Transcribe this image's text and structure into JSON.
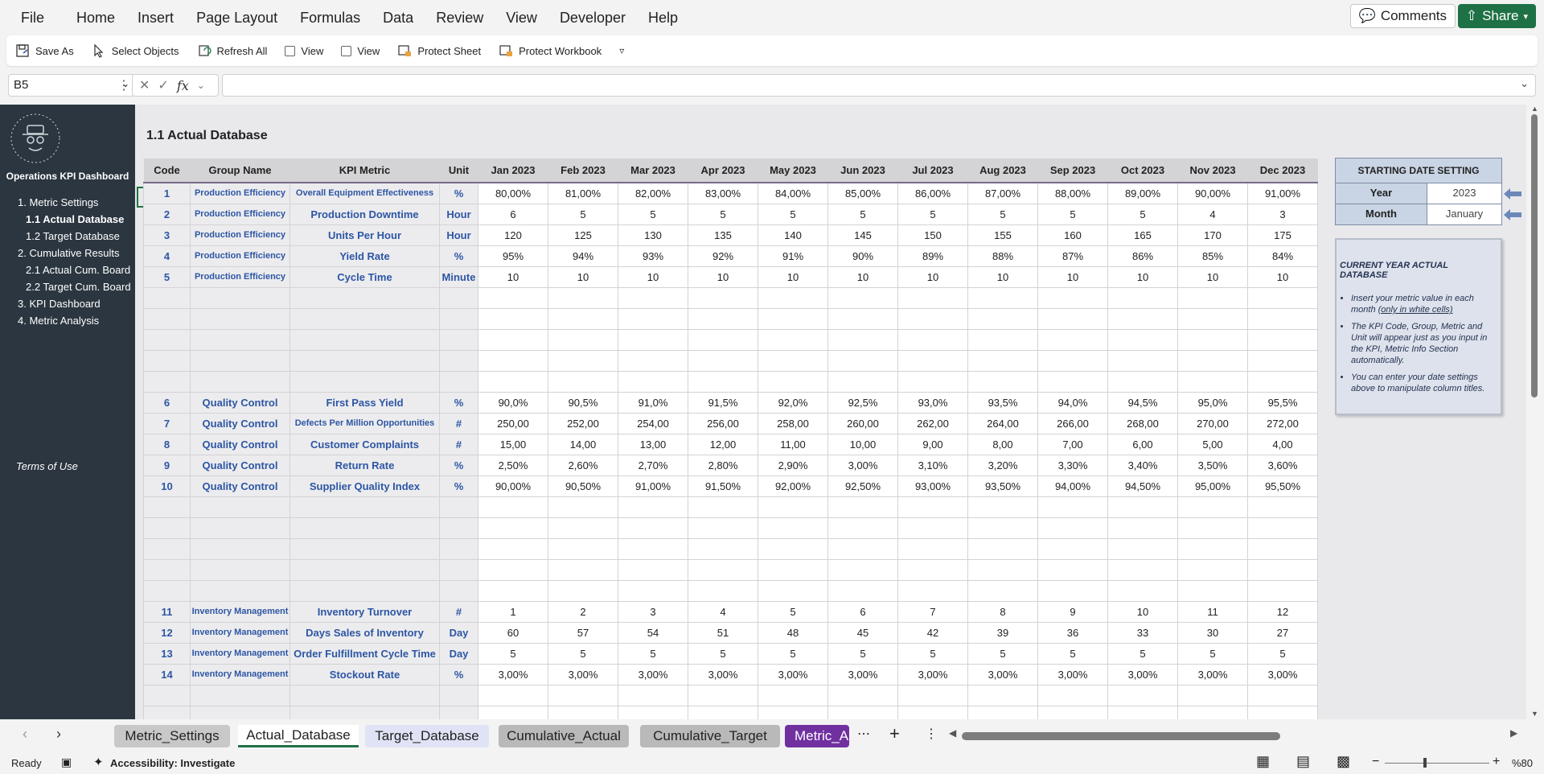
{
  "menu": [
    "File",
    "Home",
    "Insert",
    "Page Layout",
    "Formulas",
    "Data",
    "Review",
    "View",
    "Developer",
    "Help"
  ],
  "comments_label": "Comments",
  "share_label": "Share",
  "ribbon": {
    "save_as": "Save As",
    "select_objects": "Select Objects",
    "refresh_all": "Refresh All",
    "view1": "View",
    "view2": "View",
    "protect_sheet": "Protect Sheet",
    "protect_workbook": "Protect Workbook"
  },
  "formula_bar": {
    "cell_ref": "B5",
    "formula": ""
  },
  "sidebar": {
    "title": "Operations KPI Dashboard",
    "items": [
      {
        "label": "1. Metric Settings",
        "active": false,
        "indent": false
      },
      {
        "label": "1.1 Actual Database",
        "active": true,
        "indent": true
      },
      {
        "label": "1.2 Target Database",
        "active": false,
        "indent": true
      },
      {
        "label": "2. Cumulative Results",
        "active": false,
        "indent": false
      },
      {
        "label": "2.1 Actual Cum. Board",
        "active": false,
        "indent": true
      },
      {
        "label": "2.2 Target Cum. Board",
        "active": false,
        "indent": true
      },
      {
        "label": "3. KPI Dashboard",
        "active": false,
        "indent": false
      },
      {
        "label": "4. Metric Analysis",
        "active": false,
        "indent": false
      }
    ],
    "terms": "Terms of Use"
  },
  "sheet_title": "1.1 Actual Database",
  "columns": [
    "Code",
    "Group Name",
    "KPI Metric",
    "Unit",
    "Jan 2023",
    "Feb 2023",
    "Mar 2023",
    "Apr 2023",
    "May 2023",
    "Jun 2023",
    "Jul 2023",
    "Aug 2023",
    "Sep 2023",
    "Oct 2023",
    "Nov 2023",
    "Dec 2023"
  ],
  "blocks": [
    {
      "rows": [
        {
          "code": "1",
          "group": "Production Efficiency",
          "metric": "Overall Equipment Effectiveness",
          "unit": "%",
          "values": [
            "80,00%",
            "81,00%",
            "82,00%",
            "83,00%",
            "84,00%",
            "85,00%",
            "86,00%",
            "87,00%",
            "88,00%",
            "89,00%",
            "90,00%",
            "91,00%"
          ]
        },
        {
          "code": "2",
          "group": "Production Efficiency",
          "metric": "Production Downtime",
          "unit": "Hour",
          "values": [
            "6",
            "5",
            "5",
            "5",
            "5",
            "5",
            "5",
            "5",
            "5",
            "5",
            "4",
            "3"
          ]
        },
        {
          "code": "3",
          "group": "Production Efficiency",
          "metric": "Units Per Hour",
          "unit": "Hour",
          "values": [
            "120",
            "125",
            "130",
            "135",
            "140",
            "145",
            "150",
            "155",
            "160",
            "165",
            "170",
            "175"
          ]
        },
        {
          "code": "4",
          "group": "Production Efficiency",
          "metric": "Yield Rate",
          "unit": "%",
          "values": [
            "95%",
            "94%",
            "93%",
            "92%",
            "91%",
            "90%",
            "89%",
            "88%",
            "87%",
            "86%",
            "85%",
            "84%"
          ]
        },
        {
          "code": "5",
          "group": "Production Efficiency",
          "metric": "Cycle Time",
          "unit": "Minute",
          "values": [
            "10",
            "10",
            "10",
            "10",
            "10",
            "10",
            "10",
            "10",
            "10",
            "10",
            "10",
            "10"
          ]
        }
      ],
      "empty": 5
    },
    {
      "rows": [
        {
          "code": "6",
          "group": "Quality Control",
          "metric": "First Pass Yield",
          "unit": "%",
          "values": [
            "90,0%",
            "90,5%",
            "91,0%",
            "91,5%",
            "92,0%",
            "92,5%",
            "93,0%",
            "93,5%",
            "94,0%",
            "94,5%",
            "95,0%",
            "95,5%"
          ]
        },
        {
          "code": "7",
          "group": "Quality Control",
          "metric": "Defects Per Million Opportunities",
          "unit": "#",
          "values": [
            "250,00",
            "252,00",
            "254,00",
            "256,00",
            "258,00",
            "260,00",
            "262,00",
            "264,00",
            "266,00",
            "268,00",
            "270,00",
            "272,00"
          ]
        },
        {
          "code": "8",
          "group": "Quality Control",
          "metric": "Customer Complaints",
          "unit": "#",
          "values": [
            "15,00",
            "14,00",
            "13,00",
            "12,00",
            "11,00",
            "10,00",
            "9,00",
            "8,00",
            "7,00",
            "6,00",
            "5,00",
            "4,00"
          ]
        },
        {
          "code": "9",
          "group": "Quality Control",
          "metric": "Return Rate",
          "unit": "%",
          "values": [
            "2,50%",
            "2,60%",
            "2,70%",
            "2,80%",
            "2,90%",
            "3,00%",
            "3,10%",
            "3,20%",
            "3,30%",
            "3,40%",
            "3,50%",
            "3,60%"
          ]
        },
        {
          "code": "10",
          "group": "Quality Control",
          "metric": "Supplier Quality Index",
          "unit": "%",
          "values": [
            "90,00%",
            "90,50%",
            "91,00%",
            "91,50%",
            "92,00%",
            "92,50%",
            "93,00%",
            "93,50%",
            "94,00%",
            "94,50%",
            "95,00%",
            "95,50%"
          ]
        }
      ],
      "empty": 5
    },
    {
      "rows": [
        {
          "code": "11",
          "group": "Inventory Management",
          "metric": "Inventory Turnover",
          "unit": "#",
          "values": [
            "1",
            "2",
            "3",
            "4",
            "5",
            "6",
            "7",
            "8",
            "9",
            "10",
            "11",
            "12"
          ]
        },
        {
          "code": "12",
          "group": "Inventory Management",
          "metric": "Days Sales of Inventory",
          "unit": "Day",
          "values": [
            "60",
            "57",
            "54",
            "51",
            "48",
            "45",
            "42",
            "39",
            "36",
            "33",
            "30",
            "27"
          ]
        },
        {
          "code": "13",
          "group": "Inventory Management",
          "metric": "Order Fulfillment Cycle Time",
          "unit": "Day",
          "values": [
            "5",
            "5",
            "5",
            "5",
            "5",
            "5",
            "5",
            "5",
            "5",
            "5",
            "5",
            "5"
          ]
        },
        {
          "code": "14",
          "group": "Inventory Management",
          "metric": "Stockout Rate",
          "unit": "%",
          "values": [
            "3,00%",
            "3,00%",
            "3,00%",
            "3,00%",
            "3,00%",
            "3,00%",
            "3,00%",
            "3,00%",
            "3,00%",
            "3,00%",
            "3,00%",
            "3,00%"
          ]
        }
      ],
      "empty": 2
    }
  ],
  "date_setting": {
    "header": "STARTING DATE SETTING",
    "year_label": "Year",
    "year_value": "2023",
    "month_label": "Month",
    "month_value": "January"
  },
  "info": {
    "title": "CURRENT YEAR ACTUAL DATABASE",
    "bullet1_a": "Insert your metric value in each month ",
    "bullet1_b": "(only in white cells)",
    "bullet2": "The KPI Code, Group, Metric and Unit will appear just as you input in the KPI, Metric Info Section automatically.",
    "bullet3": "You can enter your date settings above to manipulate column titles."
  },
  "tabs": [
    {
      "label": "Metric_Settings",
      "bg": "#c8c8c8"
    },
    {
      "label": "Actual_Database",
      "bg": "#ffffff"
    },
    {
      "label": "Target_Database",
      "bg": "#dfe3f5"
    },
    {
      "label": "Cumulative_Actual",
      "bg": "#b9b9b9"
    },
    {
      "label": "Cumulative_Target",
      "bg": "#b9b9b9"
    },
    {
      "label": "Metric_A",
      "bg": "#7030a0"
    }
  ],
  "status": {
    "ready": "Ready",
    "accessibility": "Accessibility: Investigate",
    "zoom": "%80"
  },
  "colors": {
    "sidebar_bg": "#2b3640",
    "label_blue": "#2d56a4",
    "share_green": "#1e7145"
  }
}
